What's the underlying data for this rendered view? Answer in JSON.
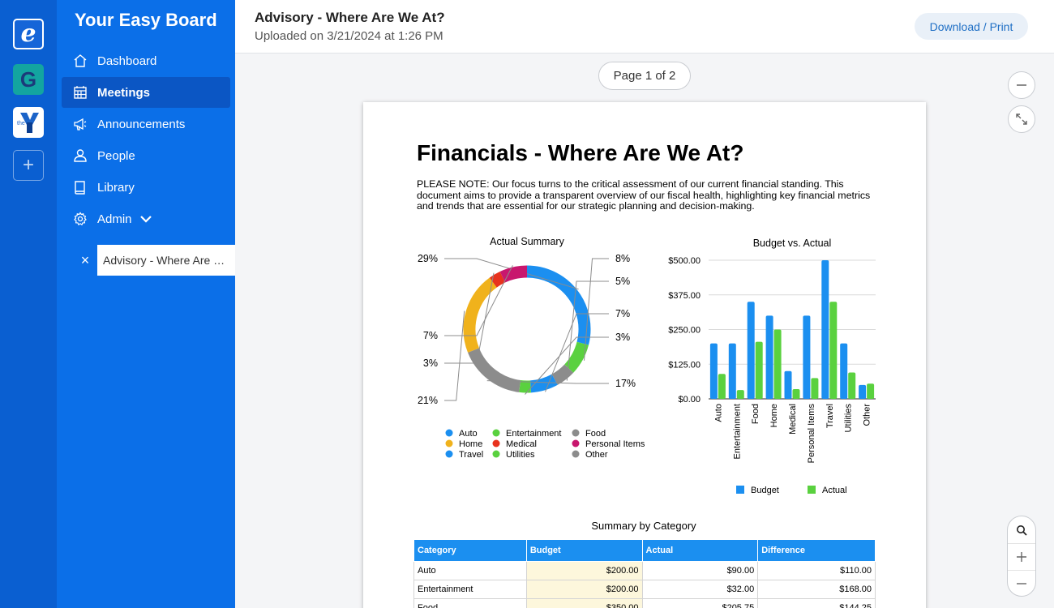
{
  "orgs": [
    {
      "name": "easy-board",
      "glyph": "e"
    },
    {
      "name": "g-org",
      "glyph": "G"
    },
    {
      "name": "the-y",
      "glyph": "the"
    },
    {
      "name": "add-org",
      "glyph": "+"
    }
  ],
  "sidebar": {
    "brand": "Your Easy Board",
    "items": [
      {
        "label": "Dashboard",
        "icon": "home-icon"
      },
      {
        "label": "Meetings",
        "icon": "calendar-icon",
        "active": true
      },
      {
        "label": "Announcements",
        "icon": "megaphone-icon"
      },
      {
        "label": "People",
        "icon": "person-icon"
      },
      {
        "label": "Library",
        "icon": "book-icon"
      },
      {
        "label": "Admin",
        "icon": "gear-icon"
      }
    ],
    "open_doc": {
      "close": "×",
      "label": "Advisory - Where Are …"
    }
  },
  "header": {
    "title": "Advisory - Where Are We At?",
    "subtitle": "Uploaded on 3/21/2024 at 1:26 PM",
    "download_label": "Download / Print"
  },
  "viewer": {
    "page_indicator": "Page 1 of 2"
  },
  "document": {
    "title": "Financials - Where Are We At?",
    "note": "PLEASE NOTE:  Our focus turns to the critical assessment of our current financial standing. This document aims to provide a transparent overview of our fiscal health, highlighting key financial metrics and trends that are essential for our strategic planning and decision-making.",
    "table": {
      "title": "Summary by Category",
      "headers": [
        "Category",
        "Budget",
        "Actual",
        "Difference"
      ],
      "rows": [
        [
          "Auto",
          "$200.00",
          "$90.00",
          "$110.00"
        ],
        [
          "Entertainment",
          "$200.00",
          "$32.00",
          "$168.00"
        ],
        [
          "Food",
          "$350.00",
          "$205.75",
          "$144.25"
        ]
      ]
    }
  },
  "colors": {
    "blue": "#1b8ff0",
    "green": "#5ad13f",
    "gray": "#8c8c8c",
    "orange": "#f0b21c",
    "red": "#e8321e",
    "magenta": "#c8176e"
  },
  "chart_data": [
    {
      "type": "pie",
      "title": "Actual Summary",
      "slices": [
        {
          "label": "Travel",
          "value": 29,
          "display": "29%",
          "color": "#1b8ff0"
        },
        {
          "label": "Entertainment",
          "value": 8,
          "display": "8%",
          "color": "#5ad13f"
        },
        {
          "label": "Food",
          "value": 5,
          "display": "5%",
          "color": "#8c8c8c"
        },
        {
          "label": "Auto",
          "value": 7,
          "display": "7%",
          "color": "#1b8ff0"
        },
        {
          "label": "Utilities",
          "value": 3,
          "display": "3%",
          "color": "#5ad13f"
        },
        {
          "label": "Other",
          "value": 17,
          "display": "17%",
          "color": "#8c8c8c"
        },
        {
          "label": "Home",
          "value": 21,
          "display": "21%",
          "color": "#f0b21c"
        },
        {
          "label": "Medical",
          "value": 3,
          "display": "3%",
          "color": "#e8321e"
        },
        {
          "label": "Personal Items",
          "value": 7,
          "display": "7%",
          "color": "#c8176e"
        }
      ],
      "legend": [
        {
          "label": "Auto",
          "color": "#1b8ff0"
        },
        {
          "label": "Entertainment",
          "color": "#5ad13f"
        },
        {
          "label": "Food",
          "color": "#8c8c8c"
        },
        {
          "label": "Home",
          "color": "#f0b21c"
        },
        {
          "label": "Medical",
          "color": "#e8321e"
        },
        {
          "label": "Personal Items",
          "color": "#c8176e"
        },
        {
          "label": "Travel",
          "color": "#1b8ff0"
        },
        {
          "label": "Utilities",
          "color": "#5ad13f"
        },
        {
          "label": "Other",
          "color": "#8c8c8c"
        }
      ],
      "legend_position": "bottom"
    },
    {
      "type": "bar",
      "title": "Budget vs. Actual",
      "categories": [
        "Auto",
        "Entertainment",
        "Food",
        "Home",
        "Medical",
        "Personal Items",
        "Travel",
        "Utilities",
        "Other"
      ],
      "series": [
        {
          "name": "Budget",
          "color": "#1b8ff0",
          "values": [
            200,
            200,
            350,
            300,
            100,
            300,
            500,
            200,
            50
          ]
        },
        {
          "name": "Actual",
          "color": "#5ad13f",
          "values": [
            90,
            32,
            205.75,
            250,
            35,
            75,
            350,
            95,
            55
          ]
        }
      ],
      "y_ticks": [
        "$0.00",
        "$125.00",
        "$250.00",
        "$375.00",
        "$500.00"
      ],
      "ylim": [
        0,
        500
      ],
      "grid": true,
      "legend_position": "bottom"
    }
  ]
}
